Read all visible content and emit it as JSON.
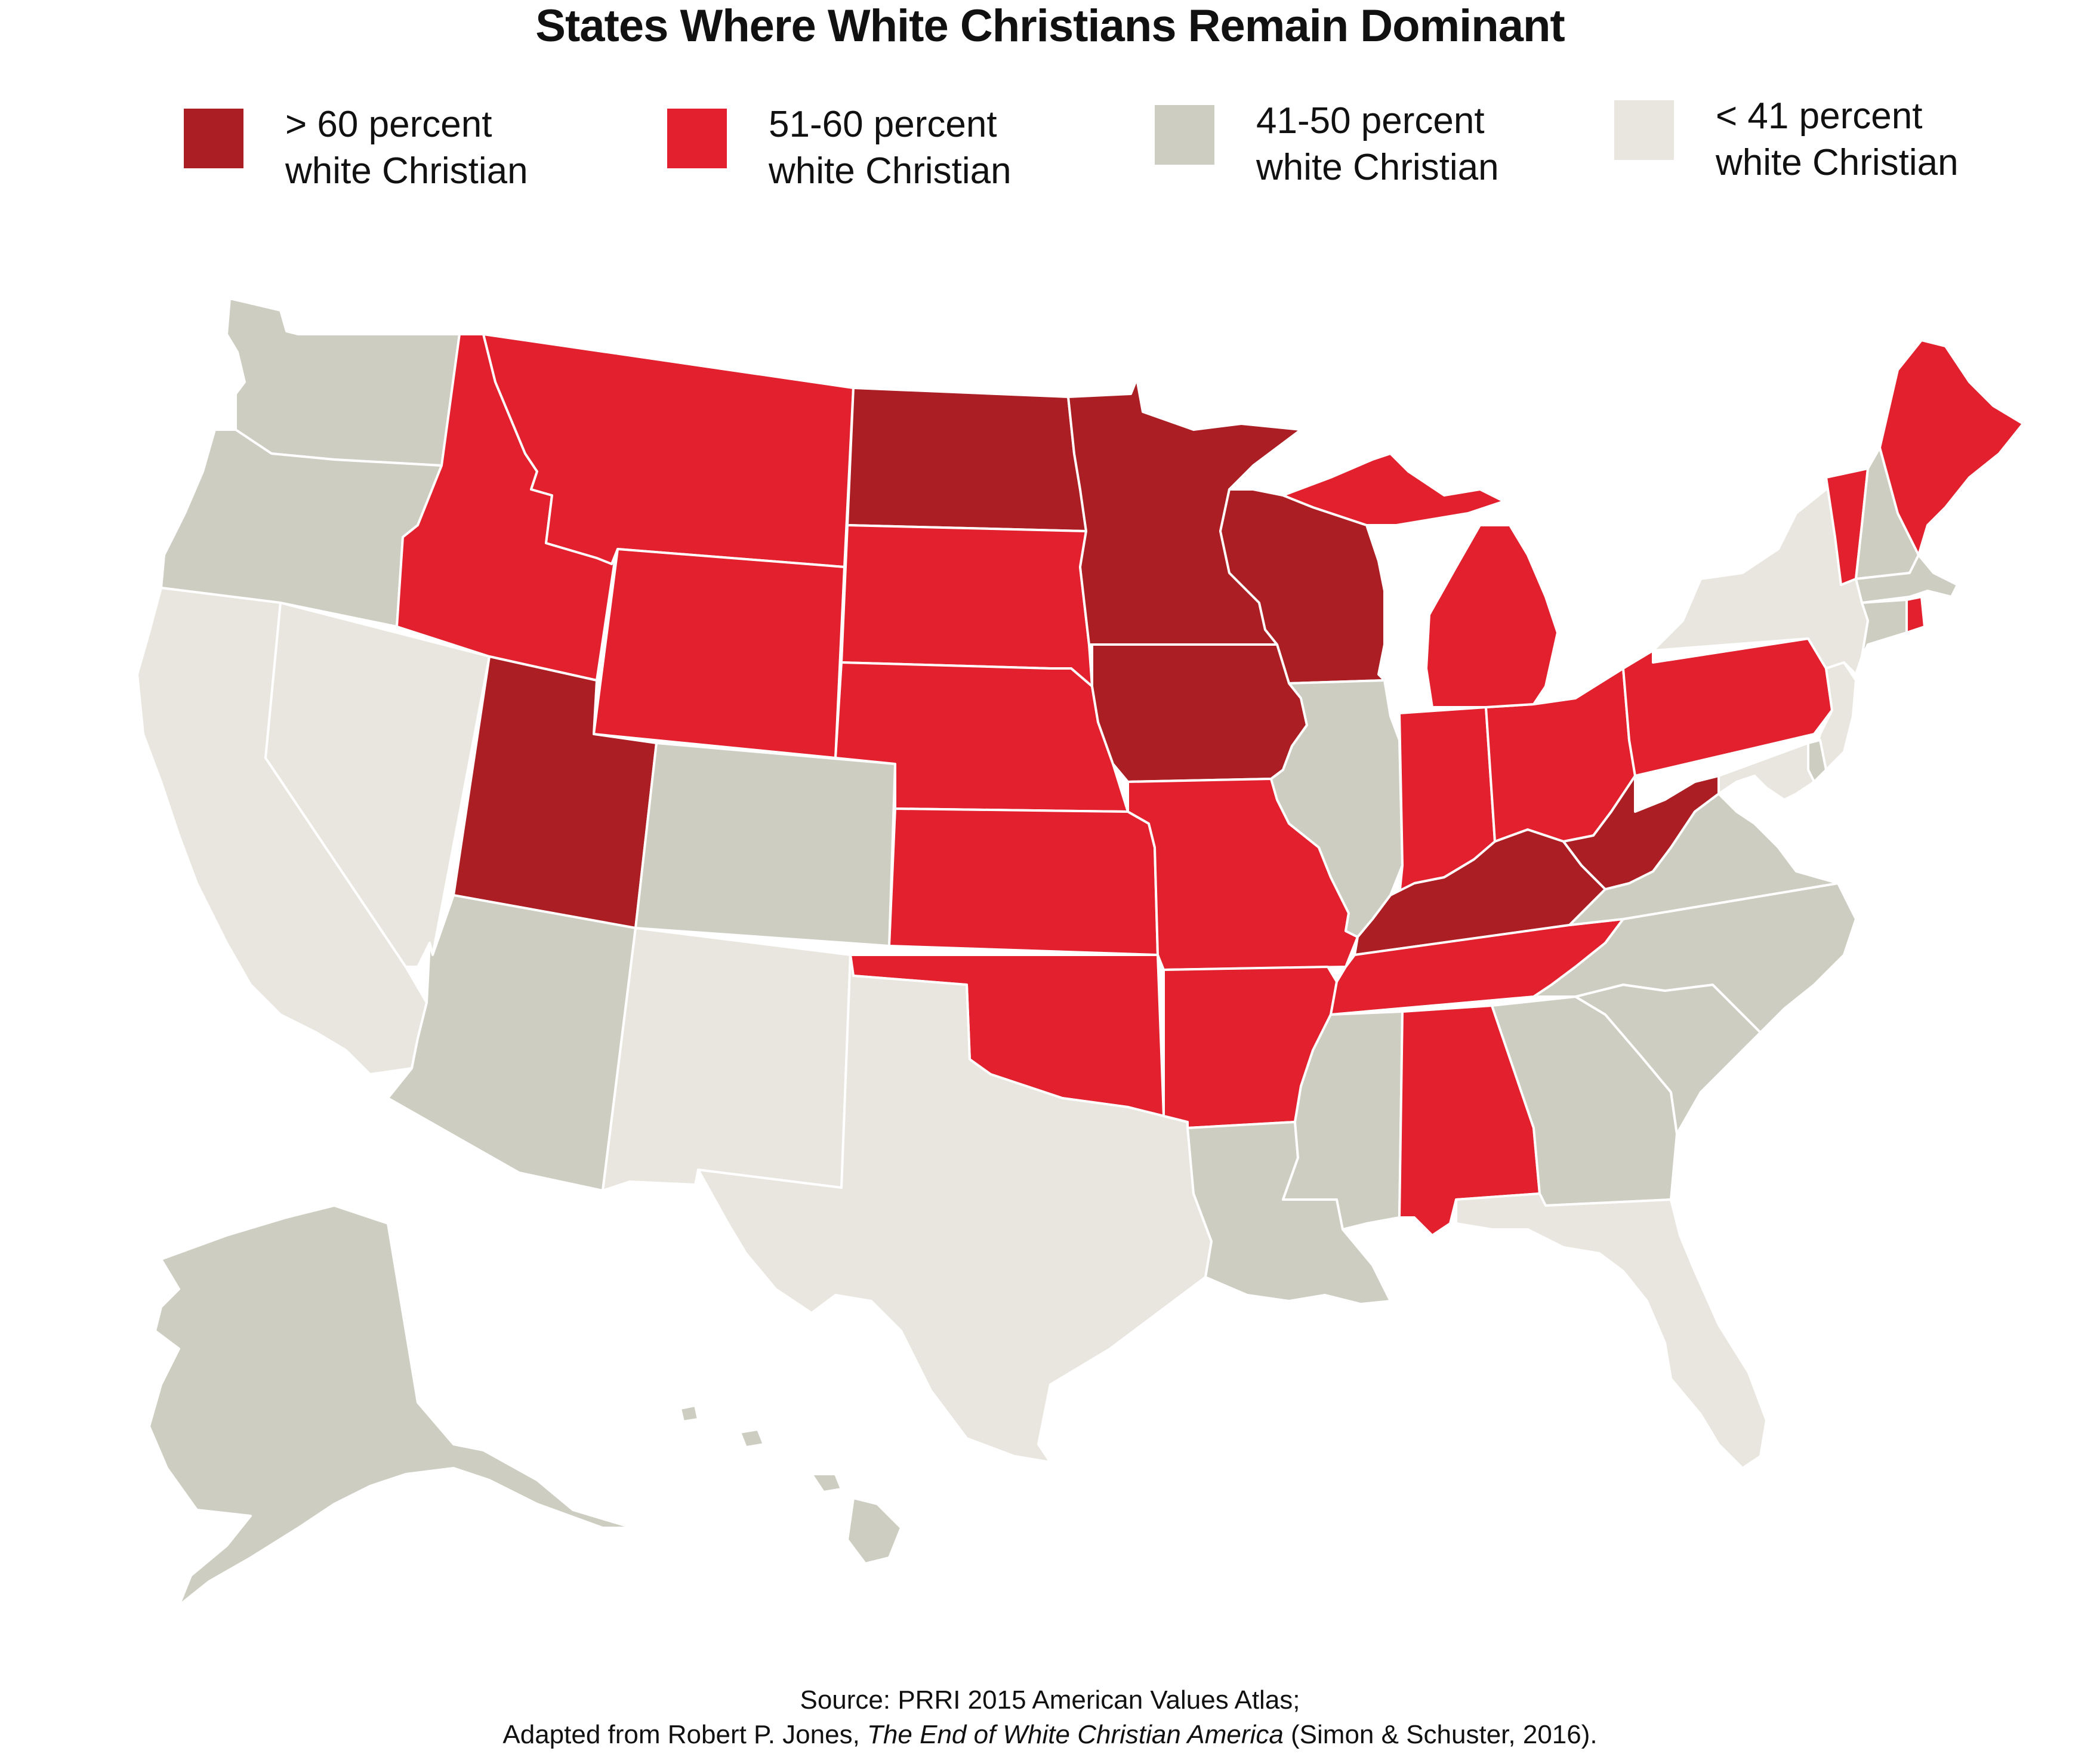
{
  "title": "States Where White Christians Remain Dominant",
  "legend": [
    {
      "line1": "> 60 percent",
      "line2": "white Christian",
      "color": "#ab1e23"
    },
    {
      "line1": "51-60 percent",
      "line2": "white Christian",
      "color": "#e2202e"
    },
    {
      "line1": "41-50 percent",
      "line2": "white Christian",
      "color": "#cdcdc2"
    },
    {
      "line1": "< 41 percent",
      "line2": "white Christian",
      "color": "#e8e6de"
    }
  ],
  "colors": {
    "gt60": "#ab1e23",
    "c51_60": "#e2202e",
    "c41_50": "#cdcdc2",
    "lt41": "#e8e6de",
    "border": "#ffffff"
  },
  "states": {
    "WA": "41-50",
    "OR": "41-50",
    "CA": "<41",
    "NV": "<41",
    "ID": "51-60",
    "MT": "51-60",
    "WY": "51-60",
    "UT": ">60",
    "AZ": "41-50",
    "CO": "41-50",
    "NM": "<41",
    "ND": ">60",
    "SD": "51-60",
    "NE": "51-60",
    "KS": "51-60",
    "OK": "51-60",
    "TX": "<41",
    "MN": ">60",
    "IA": ">60",
    "MO": "51-60",
    "AR": "51-60",
    "LA": "41-50",
    "WI": ">60",
    "IL": "41-50",
    "MI": "51-60",
    "IN": "51-60",
    "OH": "51-60",
    "KY": ">60",
    "TN": "51-60",
    "MS": "41-50",
    "AL": "51-60",
    "GA": "41-50",
    "FL": "<41",
    "SC": "41-50",
    "NC": "41-50",
    "VA": "41-50",
    "WV": ">60",
    "PA": "51-60",
    "NY": "<41",
    "VT": "51-60",
    "NH": "41-50",
    "ME": "51-60",
    "MA": "41-50",
    "CT": "41-50",
    "RI": "51-60",
    "NJ": "<41",
    "DE": "41-50",
    "MD": "<41",
    "AK": "41-50",
    "HI": "41-50"
  },
  "source": {
    "line1": "Source: PRRI 2015 American Values Atlas;",
    "line2_pre": "Adapted from Robert P. Jones, ",
    "line2_italic": "The End of White Christian America",
    "line2_post": " (Simon & Schuster, 2016)."
  }
}
